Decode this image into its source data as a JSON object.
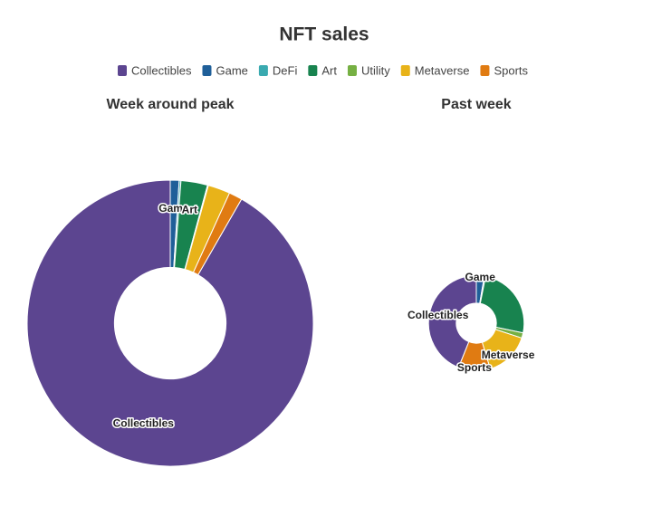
{
  "chart_data": {
    "type": "donut",
    "title": "NFT sales",
    "categories": [
      "Collectibles",
      "Game",
      "DeFi",
      "Art",
      "Utility",
      "Metaverse",
      "Sports"
    ],
    "colors": [
      "#5c4590",
      "#1f5f99",
      "#3aaab0",
      "#18834f",
      "#76b043",
      "#e8b319",
      "#e07b12"
    ],
    "charts": [
      {
        "subtitle": "Week around peak",
        "values": [
          91.7,
          1.0,
          0.2,
          3.0,
          0.1,
          2.5,
          1.5
        ],
        "labeled": [
          0,
          1,
          3
        ]
      },
      {
        "subtitle": "Past week",
        "values": [
          4.9,
          0.3,
          0.05,
          2.8,
          0.2,
          1.7,
          1.2
        ],
        "labeled": [
          0,
          1,
          5,
          6
        ]
      }
    ]
  }
}
